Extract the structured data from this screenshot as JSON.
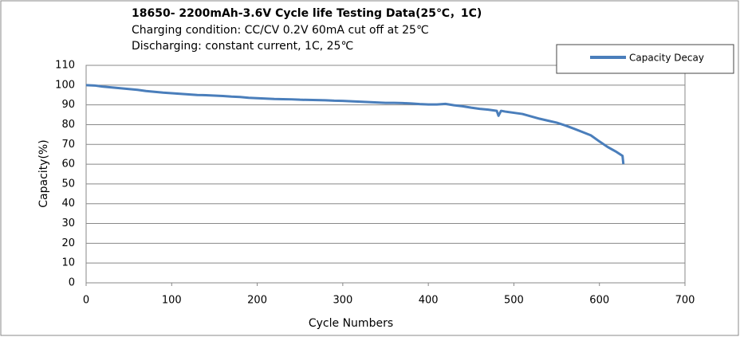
{
  "chart_data": {
    "type": "line",
    "title": "18650- 2200mAh-3.6V Cycle life Testing Data(25℃，1C)",
    "subtitle": [
      "Charging condition: CC/CV 0.2V 60mA cut off at 25℃",
      "Discharging: constant current, 1C, 25℃"
    ],
    "x_label": "Cycle Numbers",
    "y_label": "Capacity(%)",
    "x": [
      0,
      10,
      20,
      30,
      40,
      50,
      60,
      70,
      80,
      90,
      100,
      110,
      120,
      130,
      140,
      150,
      160,
      170,
      180,
      190,
      200,
      210,
      220,
      230,
      240,
      250,
      260,
      270,
      280,
      290,
      300,
      310,
      320,
      330,
      340,
      350,
      360,
      370,
      380,
      390,
      400,
      410,
      420,
      430,
      440,
      450,
      460,
      470,
      480,
      482,
      485,
      490,
      500,
      510,
      520,
      530,
      540,
      550,
      560,
      570,
      580,
      590,
      600,
      610,
      620,
      627,
      628
    ],
    "series": [
      {
        "name": "Capacity Decay",
        "color": "#4a7ebb",
        "values": [
          100,
          99.8,
          99.2,
          98.8,
          98.4,
          98,
          97.6,
          97,
          96.6,
          96.2,
          95.9,
          95.6,
          95.3,
          95,
          94.9,
          94.7,
          94.5,
          94.2,
          94,
          93.6,
          93.4,
          93.2,
          93,
          92.9,
          92.8,
          92.6,
          92.5,
          92.4,
          92.3,
          92.1,
          92,
          91.8,
          91.6,
          91.4,
          91.2,
          91,
          91,
          90.9,
          90.7,
          90.4,
          90.2,
          90.2,
          90.5,
          89.8,
          89.3,
          88.6,
          88,
          87.6,
          87,
          84.5,
          87,
          86.6,
          86,
          85.4,
          84.2,
          83,
          82,
          81,
          79.6,
          78,
          76.3,
          74.6,
          71.5,
          68.6,
          66.2,
          64.2,
          60
        ]
      }
    ],
    "xlim": [
      0,
      700
    ],
    "xticks": [
      0,
      100,
      200,
      300,
      400,
      500,
      600,
      700
    ],
    "ylim": [
      0,
      110
    ],
    "yticks": [
      0,
      10,
      20,
      30,
      40,
      50,
      60,
      70,
      80,
      90,
      100,
      110
    ],
    "grid": true,
    "legend": "top-right"
  }
}
